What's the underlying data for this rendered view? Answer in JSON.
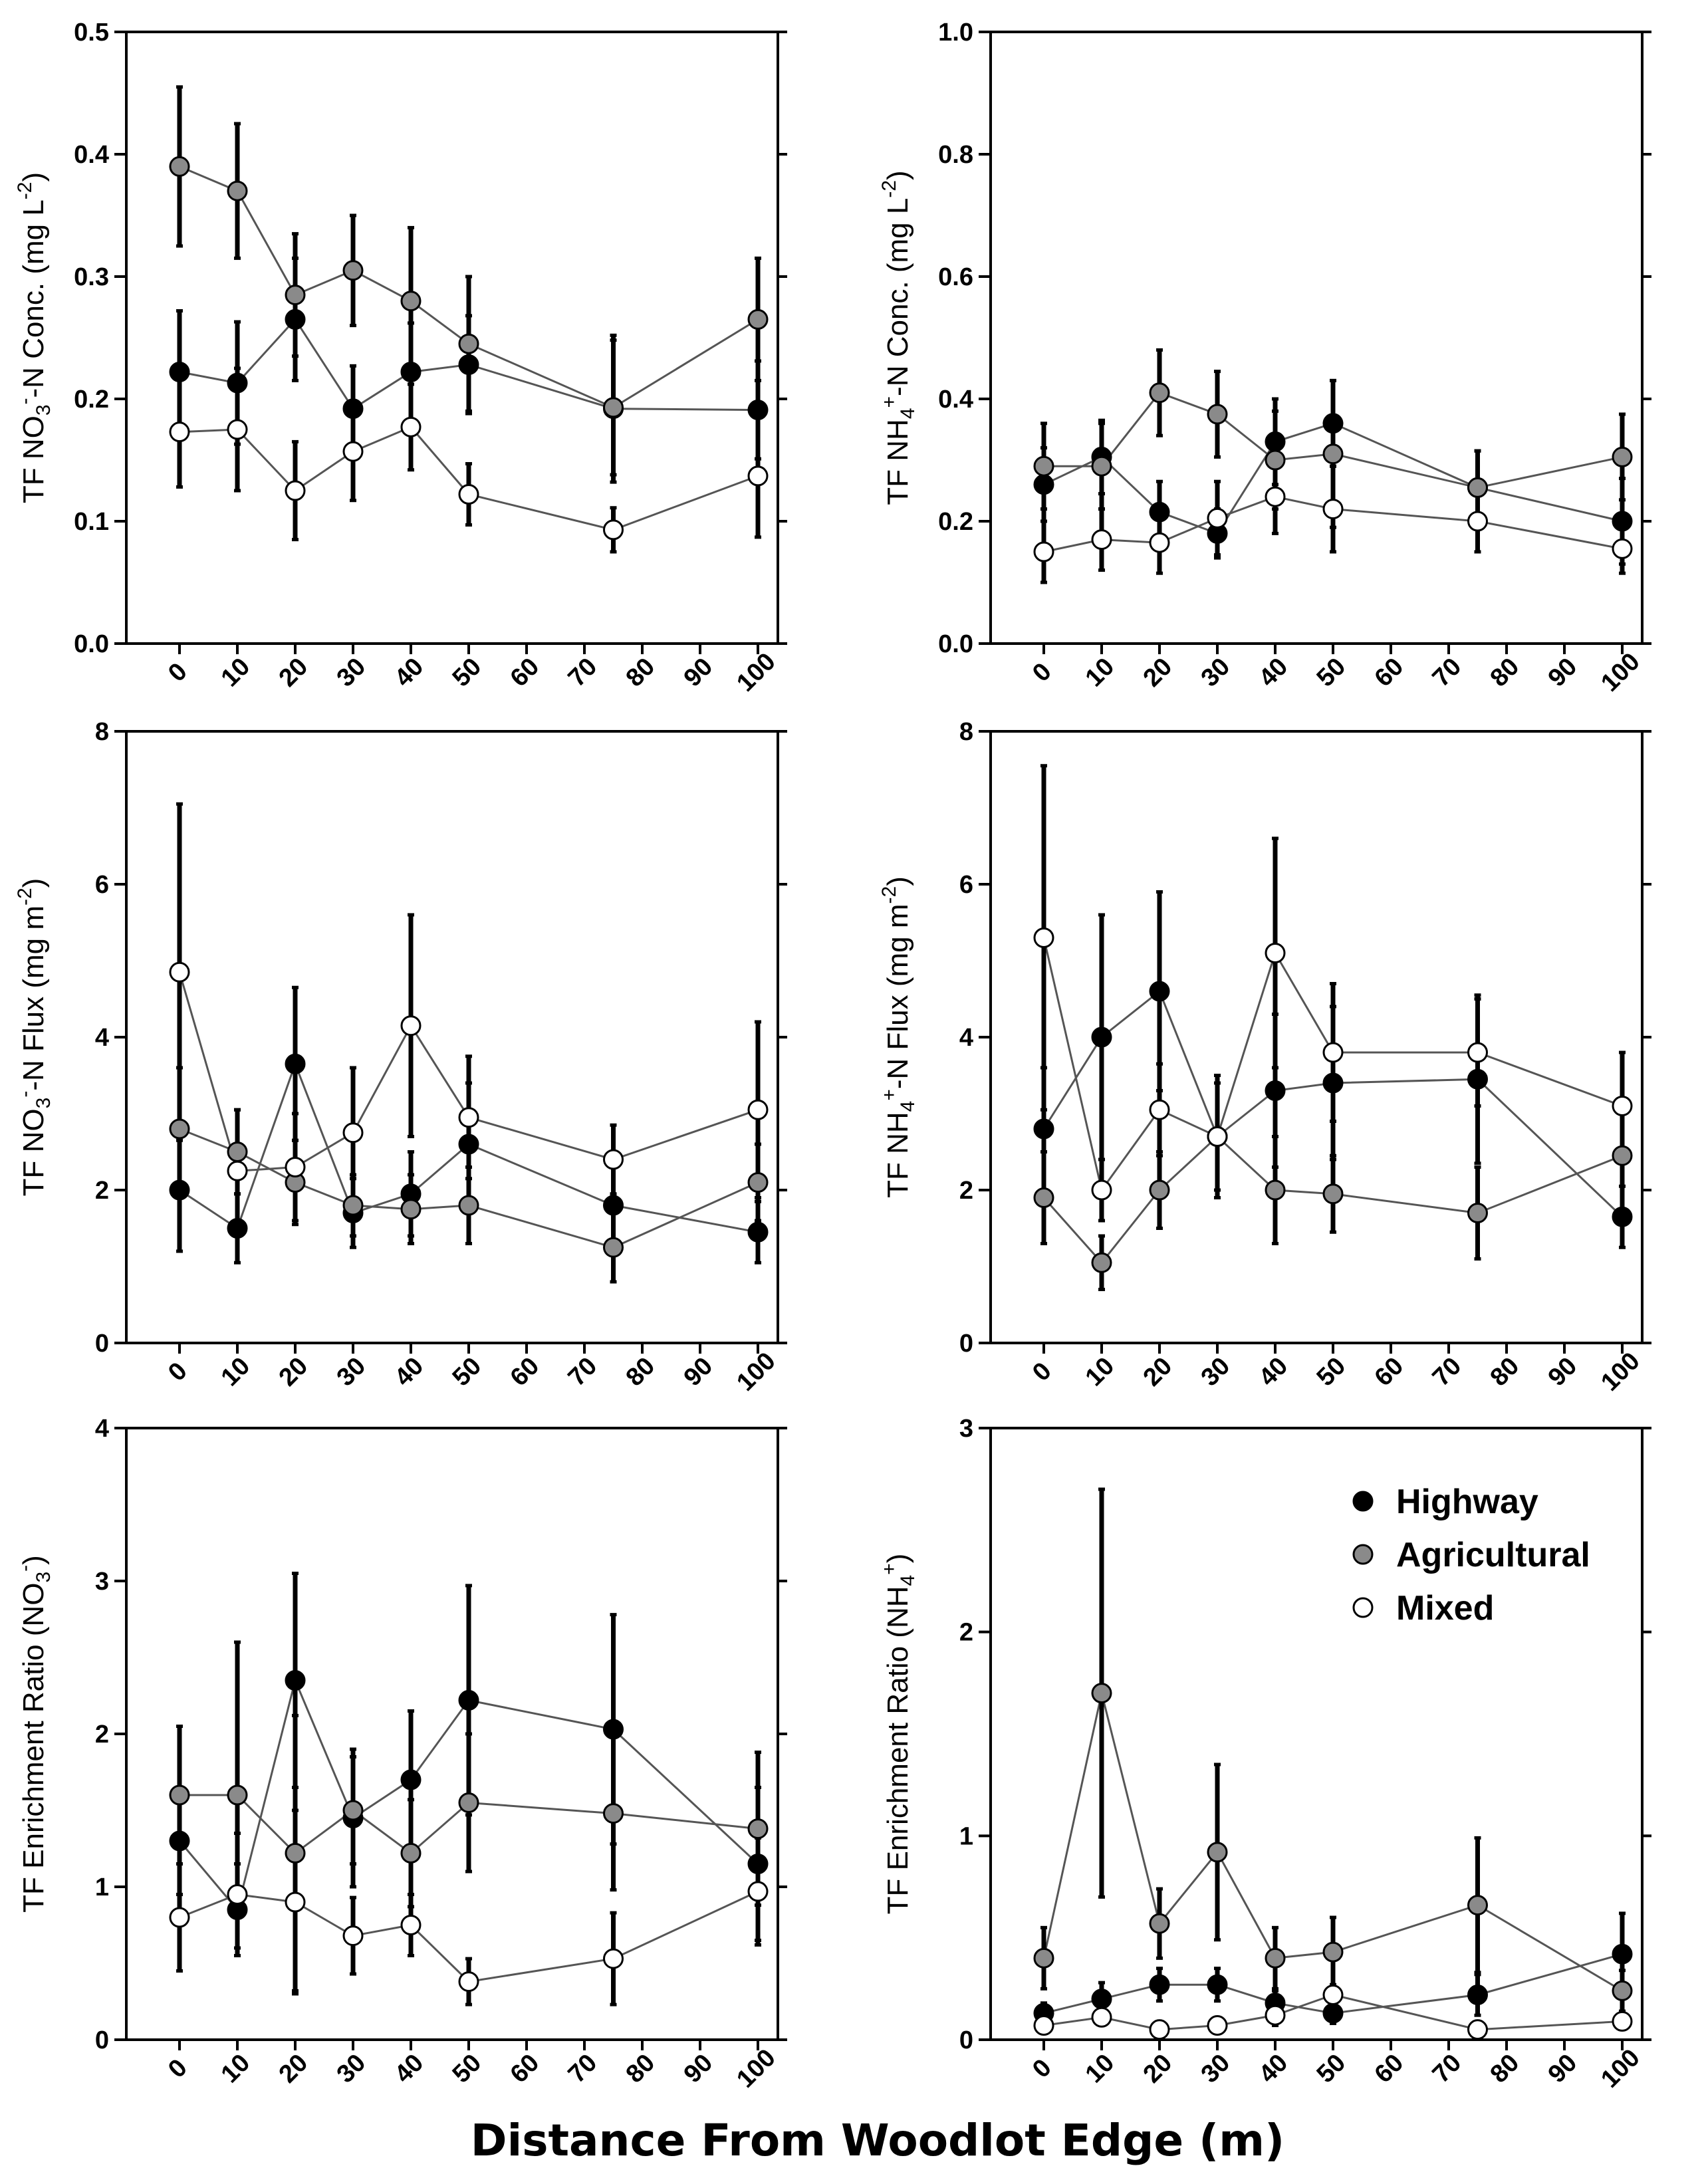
{
  "figure": {
    "xlabel": "Distance From Woodlot Edge (m)",
    "colors": {
      "Highway": "#000000",
      "Agricultural": "#8a8a8a",
      "Mixed": "#ffffff",
      "line": "#555555"
    }
  },
  "chart_data": [
    {
      "type": "line",
      "ylabel": {
        "pre": "TF NO",
        "sub": "3",
        "sup": "-",
        "post": "-N Conc. (mg L",
        "sup2": "-2",
        "end": ")"
      },
      "x_ticks": [
        0,
        10,
        20,
        30,
        40,
        50,
        60,
        70,
        80,
        90,
        100
      ],
      "y_ticks": [
        "0.0",
        "0.1",
        "0.2",
        "0.3",
        "0.4",
        "0.5"
      ],
      "ylim": [
        0,
        0.5
      ],
      "legend": null,
      "series": [
        {
          "name": "Highway",
          "x": [
            0,
            10,
            20,
            30,
            40,
            50,
            75,
            100
          ],
          "y": [
            0.222,
            0.213,
            0.265,
            0.192,
            0.222,
            0.228,
            0.192,
            0.191
          ],
          "err": [
            0.05,
            0.05,
            0.05,
            0.035,
            0.04,
            0.04,
            0.06,
            0.04
          ]
        },
        {
          "name": "Agricultural",
          "x": [
            0,
            10,
            20,
            30,
            40,
            50,
            75,
            100
          ],
          "y": [
            0.39,
            0.37,
            0.285,
            0.305,
            0.28,
            0.245,
            0.193,
            0.265
          ],
          "err": [
            0.065,
            0.055,
            0.05,
            0.045,
            0.06,
            0.055,
            0.055,
            0.05
          ]
        },
        {
          "name": "Mixed",
          "x": [
            0,
            10,
            20,
            30,
            40,
            50,
            75,
            100
          ],
          "y": [
            0.173,
            0.175,
            0.125,
            0.157,
            0.177,
            0.122,
            0.093,
            0.137
          ],
          "err": [
            0.045,
            0.05,
            0.04,
            0.04,
            0.035,
            0.025,
            0.018,
            0.05
          ]
        }
      ]
    },
    {
      "type": "line",
      "ylabel": {
        "pre": "TF NH",
        "sub": "4",
        "sup": "+",
        "post": "-N Conc. (mg L",
        "sup2": "-2",
        "end": ")"
      },
      "x_ticks": [
        0,
        10,
        20,
        30,
        40,
        50,
        60,
        70,
        80,
        90,
        100
      ],
      "y_ticks": [
        "0.0",
        "0.2",
        "0.4",
        "0.6",
        "0.8",
        "1.0"
      ],
      "ylim": [
        0,
        1.0
      ],
      "legend": null,
      "series": [
        {
          "name": "Highway",
          "x": [
            0,
            10,
            20,
            30,
            40,
            50,
            75,
            100
          ],
          "y": [
            0.26,
            0.305,
            0.215,
            0.18,
            0.33,
            0.36,
            0.255,
            0.2
          ],
          "err": [
            0.06,
            0.06,
            0.05,
            0.04,
            0.07,
            0.07,
            0.06,
            0.07
          ]
        },
        {
          "name": "Agricultural",
          "x": [
            0,
            10,
            20,
            30,
            40,
            50,
            75,
            100
          ],
          "y": [
            0.29,
            0.29,
            0.41,
            0.375,
            0.3,
            0.31,
            0.255,
            0.305
          ],
          "err": [
            0.07,
            0.07,
            0.07,
            0.07,
            0.08,
            0.12,
            0.06,
            0.07
          ]
        },
        {
          "name": "Mixed",
          "x": [
            0,
            10,
            20,
            30,
            40,
            50,
            75,
            100
          ],
          "y": [
            0.15,
            0.17,
            0.165,
            0.205,
            0.24,
            0.22,
            0.2,
            0.155
          ],
          "err": [
            0.05,
            0.05,
            0.05,
            0.06,
            0.06,
            0.07,
            0.05,
            0.04
          ]
        }
      ]
    },
    {
      "type": "line",
      "ylabel": {
        "pre": "TF NO",
        "sub": "3",
        "sup": "-",
        "post": "-N Flux (mg m",
        "sup2": "-2",
        "end": ")"
      },
      "x_ticks": [
        0,
        10,
        20,
        30,
        40,
        50,
        60,
        70,
        80,
        90,
        100
      ],
      "y_ticks": [
        "0",
        "2",
        "4",
        "6",
        "8"
      ],
      "ylim": [
        0,
        8
      ],
      "legend": null,
      "series": [
        {
          "name": "Highway",
          "x": [
            0,
            10,
            20,
            30,
            40,
            50,
            75,
            100
          ],
          "y": [
            2.0,
            1.5,
            3.65,
            1.7,
            1.95,
            2.6,
            1.8,
            1.45
          ],
          "err": [
            0.8,
            0.45,
            1.0,
            0.45,
            0.55,
            0.8,
            0.55,
            0.4
          ]
        },
        {
          "name": "Agricultural",
          "x": [
            0,
            10,
            20,
            30,
            40,
            50,
            75,
            100
          ],
          "y": [
            2.8,
            2.5,
            2.1,
            1.8,
            1.75,
            1.8,
            1.25,
            2.1
          ],
          "err": [
            0.8,
            0.55,
            0.55,
            0.4,
            0.45,
            0.5,
            0.45,
            0.5
          ]
        },
        {
          "name": "Mixed",
          "x": [
            0,
            10,
            20,
            30,
            40,
            50,
            75,
            100
          ],
          "y": [
            4.85,
            2.25,
            2.3,
            2.75,
            4.15,
            2.95,
            2.4,
            3.05
          ],
          "err": [
            2.2,
            0.8,
            0.7,
            0.85,
            1.45,
            0.8,
            0.45,
            1.15
          ]
        }
      ]
    },
    {
      "type": "line",
      "ylabel": {
        "pre": "TF NH",
        "sub": "4",
        "sup": "+",
        "post": "-N Flux (mg m",
        "sup2": "-2",
        "end": ")"
      },
      "x_ticks": [
        0,
        10,
        20,
        30,
        40,
        50,
        60,
        70,
        80,
        90,
        100
      ],
      "y_ticks": [
        "0",
        "2",
        "4",
        "6",
        "8"
      ],
      "ylim": [
        0,
        8
      ],
      "legend": null,
      "series": [
        {
          "name": "Highway",
          "x": [
            0,
            10,
            20,
            30,
            40,
            50,
            75,
            100
          ],
          "y": [
            2.8,
            4.0,
            4.6,
            2.7,
            3.3,
            3.4,
            3.45,
            1.65
          ],
          "err": [
            0.8,
            1.6,
            1.3,
            0.7,
            1.0,
            1.0,
            1.1,
            0.4
          ]
        },
        {
          "name": "Agricultural",
          "x": [
            0,
            10,
            20,
            30,
            40,
            50,
            75,
            100
          ],
          "y": [
            1.9,
            1.05,
            2.0,
            2.7,
            2.0,
            1.95,
            1.7,
            2.45
          ],
          "err": [
            0.6,
            0.35,
            0.5,
            0.7,
            0.7,
            0.5,
            0.6,
            0.7
          ]
        },
        {
          "name": "Mixed",
          "x": [
            0,
            10,
            20,
            30,
            40,
            50,
            75,
            100
          ],
          "y": [
            5.3,
            2.0,
            3.05,
            2.7,
            5.1,
            3.8,
            3.8,
            3.1
          ],
          "err": [
            2.25,
            0.4,
            0.6,
            0.8,
            1.5,
            0.9,
            0.7,
            0.7
          ]
        }
      ]
    },
    {
      "type": "line",
      "ylabel": {
        "pre": "TF Enrichment Ratio (NO",
        "sub": "3",
        "sup": "-",
        "post": ")",
        "sup2": "",
        "end": ""
      },
      "x_ticks": [
        0,
        10,
        20,
        30,
        40,
        50,
        60,
        70,
        80,
        90,
        100
      ],
      "y_ticks": [
        "0",
        "1",
        "2",
        "3",
        "4"
      ],
      "ylim": [
        0,
        4
      ],
      "legend": null,
      "series": [
        {
          "name": "Highway",
          "x": [
            0,
            10,
            20,
            30,
            40,
            50,
            75,
            100
          ],
          "y": [
            1.3,
            0.85,
            2.35,
            1.45,
            1.7,
            2.22,
            2.03,
            1.15
          ],
          "err": [
            0.35,
            0.3,
            0.7,
            0.45,
            0.45,
            0.75,
            0.75,
            0.5
          ]
        },
        {
          "name": "Agricultural",
          "x": [
            0,
            10,
            20,
            30,
            40,
            50,
            75,
            100
          ],
          "y": [
            1.6,
            1.6,
            1.22,
            1.5,
            1.22,
            1.55,
            1.48,
            1.38
          ],
          "err": [
            0.45,
            1.0,
            0.9,
            0.35,
            0.35,
            0.45,
            0.5,
            0.5
          ]
        },
        {
          "name": "Mixed",
          "x": [
            0,
            10,
            20,
            30,
            40,
            50,
            75,
            100
          ],
          "y": [
            0.8,
            0.95,
            0.9,
            0.68,
            0.75,
            0.38,
            0.53,
            0.97
          ],
          "err": [
            0.35,
            0.4,
            0.6,
            0.25,
            0.2,
            0.15,
            0.3,
            0.35
          ]
        }
      ]
    },
    {
      "type": "line",
      "ylabel": {
        "pre": "TF Enrichment Ratio (NH",
        "sub": "4",
        "sup": "+",
        "post": ")",
        "sup2": "",
        "end": ""
      },
      "x_ticks": [
        0,
        10,
        20,
        30,
        40,
        50,
        60,
        70,
        80,
        90,
        100
      ],
      "y_ticks": [
        "0",
        "1",
        "2",
        "3"
      ],
      "ylim": [
        0,
        3
      ],
      "legend": {
        "entries": [
          "Highway",
          "Agricultural",
          "Mixed"
        ],
        "position": "top-right"
      },
      "series": [
        {
          "name": "Highway",
          "x": [
            0,
            10,
            20,
            30,
            40,
            50,
            75,
            100
          ],
          "y": [
            0.13,
            0.2,
            0.27,
            0.27,
            0.18,
            0.13,
            0.22,
            0.42
          ],
          "err": [
            0.05,
            0.08,
            0.08,
            0.08,
            0.06,
            0.05,
            0.1,
            0.2
          ]
        },
        {
          "name": "Agricultural",
          "x": [
            0,
            10,
            20,
            30,
            40,
            50,
            75,
            100
          ],
          "y": [
            0.4,
            1.7,
            0.57,
            0.92,
            0.4,
            0.43,
            0.66,
            0.24
          ],
          "err": [
            0.15,
            1.0,
            0.17,
            0.43,
            0.15,
            0.17,
            0.33,
            0.1
          ]
        },
        {
          "name": "Mixed",
          "x": [
            0,
            10,
            20,
            30,
            40,
            50,
            75,
            100
          ],
          "y": [
            0.07,
            0.11,
            0.05,
            0.07,
            0.12,
            0.22,
            0.05,
            0.09
          ],
          "err": [
            0.03,
            0.04,
            0.02,
            0.03,
            0.05,
            0.05,
            0.02,
            0.03
          ]
        }
      ]
    }
  ]
}
